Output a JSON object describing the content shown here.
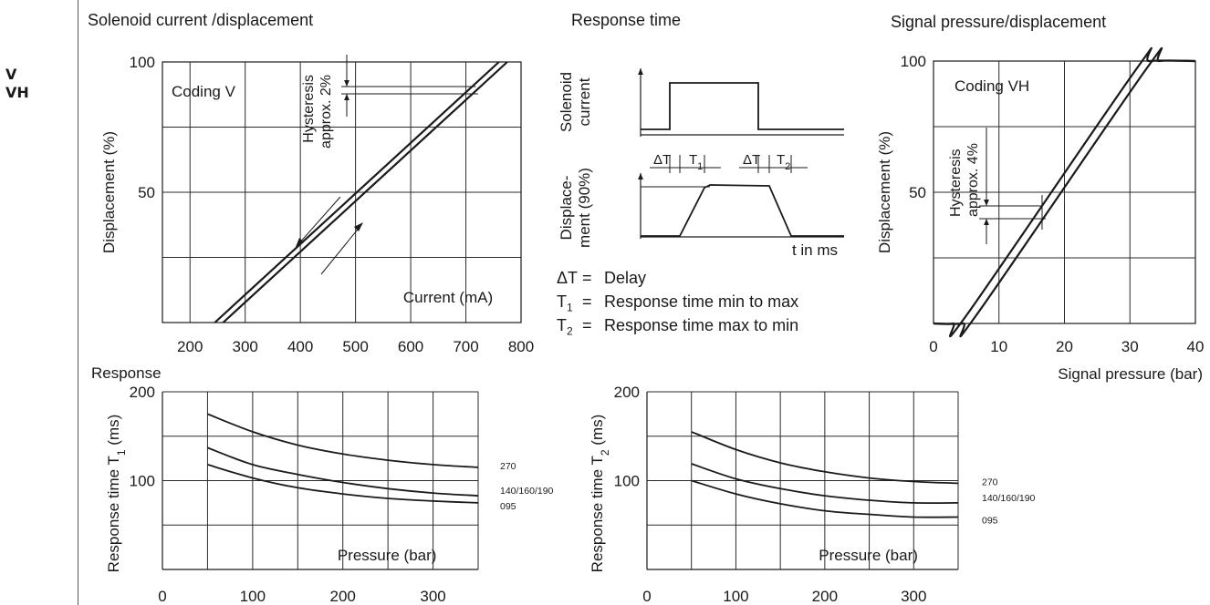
{
  "sidebar": {
    "codes": [
      "V",
      "VH"
    ]
  },
  "legend": [
    {
      "symbol": "ΔT",
      "text": "Delay"
    },
    {
      "symbol": "T",
      "sub": "1",
      "text": "Response time min to max"
    },
    {
      "symbol": "T",
      "sub": "2",
      "text": "Response time max to min"
    }
  ],
  "colors": {
    "line": "#1a1a1a",
    "grid": "#2a2a2a"
  },
  "chart_data": [
    {
      "id": "solenoid",
      "type": "line",
      "title": "Solenoid current /displacement",
      "xlabel": "Current (mA)",
      "ylabel": "Displacement (%)",
      "xlim": [
        150,
        800
      ],
      "ylim": [
        0,
        100
      ],
      "xticks": [
        200,
        300,
        400,
        500,
        600,
        700,
        800
      ],
      "yticks": [
        50,
        100
      ],
      "ytick_labels": [
        "50",
        "100"
      ],
      "grid": true,
      "annotations": [
        "Coding V",
        "Hysteresis",
        "approx. 2%"
      ],
      "series": [
        {
          "x": [
            245,
            760
          ],
          "y": [
            0,
            100
          ]
        },
        {
          "x": [
            260,
            775
          ],
          "y": [
            0,
            100
          ]
        }
      ]
    },
    {
      "id": "response-time",
      "type": "line",
      "title": "Response time",
      "xlabel": "t in ms",
      "ylabel_top": [
        "Solenoid",
        "current"
      ],
      "ylabel_bottom": [
        "Displace-",
        "ment (90%)"
      ],
      "markers": [
        {
          "label": "ΔT"
        },
        {
          "label": "T",
          "sub": "1"
        },
        {
          "label": "ΔT"
        },
        {
          "label": "T",
          "sub": "2"
        }
      ]
    },
    {
      "id": "signal-pressure",
      "type": "line",
      "title": "Signal pressure/displacement",
      "xlabel": "Signal pressure (bar)",
      "ylabel": "Displacement (%)",
      "xlim": [
        0,
        40
      ],
      "ylim": [
        0,
        100
      ],
      "xticks": [
        0,
        10,
        20,
        30,
        40
      ],
      "yticks": [
        50,
        100
      ],
      "ytick_labels": [
        "50",
        "100"
      ],
      "grid": true,
      "annotations": [
        "Coding VH",
        "Hysteresis",
        "approx. 4%"
      ],
      "series": [
        {
          "x": [
            0,
            3,
            5,
            31,
            33,
            40
          ],
          "y": [
            0,
            0,
            3,
            97,
            100,
            100
          ]
        },
        {
          "x": [
            0,
            4.5,
            6.5,
            32.5,
            34.5,
            40
          ],
          "y": [
            0,
            0,
            3,
            97,
            100,
            100
          ]
        }
      ]
    },
    {
      "id": "response-t1",
      "type": "line",
      "title": "Response",
      "xlabel": "Pressure (bar)",
      "ylabel": "Response time T",
      "ylabel_sub": "1",
      "ylabel_unit": " (ms)",
      "xlim": [
        0,
        350
      ],
      "ylim": [
        0,
        200
      ],
      "xticks": [
        0,
        100,
        200,
        300
      ],
      "yticks": [
        100,
        200
      ],
      "grid": true,
      "series": [
        {
          "name": "270",
          "x": [
            50,
            100,
            150,
            200,
            250,
            300,
            350
          ],
          "y": [
            175,
            155,
            140,
            130,
            123,
            118,
            115
          ]
        },
        {
          "name": "140/160/190",
          "x": [
            50,
            100,
            150,
            200,
            250,
            300,
            350
          ],
          "y": [
            137,
            118,
            107,
            98,
            91,
            86,
            83
          ]
        },
        {
          "name": "095",
          "x": [
            50,
            100,
            150,
            200,
            250,
            300,
            350
          ],
          "y": [
            118,
            103,
            92,
            85,
            80,
            77,
            75
          ]
        }
      ]
    },
    {
      "id": "response-t2",
      "type": "line",
      "title": "",
      "xlabel": "Pressure (bar)",
      "ylabel": "Response time T",
      "ylabel_sub": "2",
      "ylabel_unit": " (ms)",
      "xlim": [
        0,
        350
      ],
      "ylim": [
        0,
        200
      ],
      "xticks": [
        0,
        100,
        200,
        300
      ],
      "yticks": [
        100,
        200
      ],
      "grid": true,
      "series": [
        {
          "name": "270",
          "x": [
            50,
            100,
            150,
            200,
            250,
            300,
            350
          ],
          "y": [
            155,
            135,
            120,
            110,
            103,
            99,
            97
          ]
        },
        {
          "name": "140/160/190",
          "x": [
            50,
            100,
            150,
            200,
            250,
            300,
            350
          ],
          "y": [
            119,
            102,
            91,
            83,
            78,
            75,
            75
          ]
        },
        {
          "name": "095",
          "x": [
            50,
            100,
            150,
            200,
            250,
            300,
            350
          ],
          "y": [
            100,
            85,
            74,
            66,
            62,
            59,
            59
          ]
        }
      ]
    }
  ]
}
